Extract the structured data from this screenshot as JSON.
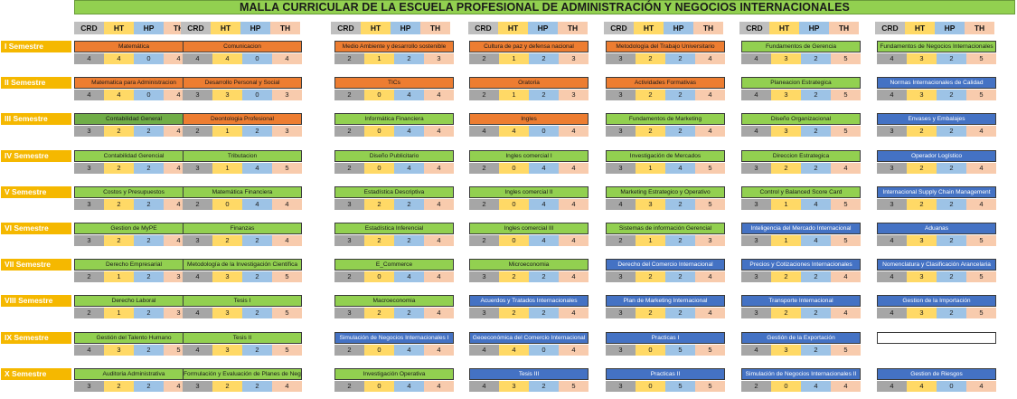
{
  "title": "MALLA CURRICULAR DE LA ESCUELA PROFESIONAL DE ADMINISTRACIÓN Y NEGOCIOS INTERNACIONALES",
  "column_headers": [
    "CRD",
    "HT",
    "HP",
    "TH"
  ],
  "colors": {
    "orange": "#ed7d31",
    "green": "#92d050",
    "dark_green": "#70ad47",
    "blue": "#4472c4",
    "semester": "#f5b800"
  },
  "semesters": [
    {
      "label": "I Semestre",
      "courses": [
        {
          "name": "Matemática",
          "color": "orange",
          "crd": "4",
          "ht": "4",
          "hp": "0",
          "th": "4"
        },
        {
          "name": "Comunicacion",
          "color": "orange",
          "crd": "4",
          "ht": "4",
          "hp": "0",
          "th": "4"
        },
        {
          "name": "Medio Ambiente y desarrollo sostenible",
          "color": "orange",
          "crd": "2",
          "ht": "1",
          "hp": "2",
          "th": "3"
        },
        {
          "name": "Cultura de paz y defensa nacional",
          "color": "orange",
          "crd": "2",
          "ht": "1",
          "hp": "2",
          "th": "3"
        },
        {
          "name": "Metodología del Trabajo Universitario",
          "color": "orange",
          "crd": "3",
          "ht": "2",
          "hp": "2",
          "th": "4"
        },
        {
          "name": "Fundamentos de Gerencia",
          "color": "green",
          "crd": "4",
          "ht": "3",
          "hp": "2",
          "th": "5"
        },
        {
          "name": "Fundamentos de Negocios Internacionales",
          "color": "green",
          "crd": "4",
          "ht": "3",
          "hp": "2",
          "th": "5"
        }
      ]
    },
    {
      "label": "II Semestre",
      "courses": [
        {
          "name": "Matematica para Administracion",
          "color": "orange",
          "crd": "4",
          "ht": "4",
          "hp": "0",
          "th": "4"
        },
        {
          "name": "Desarrollo Personal y Social",
          "color": "orange",
          "crd": "3",
          "ht": "3",
          "hp": "0",
          "th": "3"
        },
        {
          "name": "TICs",
          "color": "orange",
          "crd": "2",
          "ht": "0",
          "hp": "4",
          "th": "4"
        },
        {
          "name": "Oratoria",
          "color": "orange",
          "crd": "2",
          "ht": "1",
          "hp": "2",
          "th": "3"
        },
        {
          "name": "Actividades Formativas",
          "color": "orange",
          "crd": "3",
          "ht": "2",
          "hp": "2",
          "th": "4"
        },
        {
          "name": "Planeacion  Estrategica",
          "color": "green",
          "crd": "4",
          "ht": "3",
          "hp": "2",
          "th": "5"
        },
        {
          "name": "Normas Internacionales de Calidad",
          "color": "blue",
          "crd": "4",
          "ht": "3",
          "hp": "2",
          "th": "5"
        }
      ]
    },
    {
      "label": "III Semestre",
      "courses": [
        {
          "name": "Contabilidad General",
          "color": "dgreen",
          "crd": "3",
          "ht": "2",
          "hp": "2",
          "th": "4"
        },
        {
          "name": "Deontologia Profesional",
          "color": "orange",
          "crd": "2",
          "ht": "1",
          "hp": "2",
          "th": "3"
        },
        {
          "name": "Informática  Financiera",
          "color": "green",
          "crd": "2",
          "ht": "0",
          "hp": "4",
          "th": "4"
        },
        {
          "name": "Ingles",
          "color": "orange",
          "crd": "4",
          "ht": "4",
          "hp": "0",
          "th": "4"
        },
        {
          "name": "Fundamentos de Marketing",
          "color": "green",
          "crd": "3",
          "ht": "2",
          "hp": "2",
          "th": "4"
        },
        {
          "name": "Diseño Organizacional",
          "color": "green",
          "crd": "4",
          "ht": "3",
          "hp": "2",
          "th": "5"
        },
        {
          "name": "Envases y Embalajes",
          "color": "blue",
          "crd": "3",
          "ht": "2",
          "hp": "2",
          "th": "4"
        }
      ]
    },
    {
      "label": "IV Semestre",
      "courses": [
        {
          "name": "Contabilidad Gerencial",
          "color": "green",
          "crd": "3",
          "ht": "2",
          "hp": "2",
          "th": "4"
        },
        {
          "name": "Tributacion",
          "color": "green",
          "crd": "3",
          "ht": "1",
          "hp": "4",
          "th": "5"
        },
        {
          "name": "Diseño Publicitario",
          "color": "green",
          "crd": "2",
          "ht": "0",
          "hp": "4",
          "th": "4"
        },
        {
          "name": "Ingles comercial I",
          "color": "green",
          "crd": "2",
          "ht": "0",
          "hp": "4",
          "th": "4"
        },
        {
          "name": "Investigación de Mercados",
          "color": "green",
          "crd": "3",
          "ht": "1",
          "hp": "4",
          "th": "5"
        },
        {
          "name": "Direccion Estrategica",
          "color": "green",
          "crd": "3",
          "ht": "2",
          "hp": "2",
          "th": "4"
        },
        {
          "name": "Operador Logístico",
          "color": "blue",
          "crd": "3",
          "ht": "2",
          "hp": "2",
          "th": "4"
        }
      ]
    },
    {
      "label": "V Semestre",
      "courses": [
        {
          "name": "Costos y Presupuestos",
          "color": "green",
          "crd": "3",
          "ht": "2",
          "hp": "2",
          "th": "4"
        },
        {
          "name": "Matemática Financiera",
          "color": "green",
          "crd": "2",
          "ht": "0",
          "hp": "4",
          "th": "4"
        },
        {
          "name": "Estadística Descriptiva",
          "color": "green",
          "crd": "3",
          "ht": "2",
          "hp": "2",
          "th": "4"
        },
        {
          "name": "Ingles comercial II",
          "color": "green",
          "crd": "2",
          "ht": "0",
          "hp": "4",
          "th": "4"
        },
        {
          "name": "Marketing Estrategico y Operativo",
          "color": "green",
          "crd": "4",
          "ht": "3",
          "hp": "2",
          "th": "5"
        },
        {
          "name": "Control y Balanced Score Card",
          "color": "green",
          "crd": "3",
          "ht": "1",
          "hp": "4",
          "th": "5"
        },
        {
          "name": "Internacional Supply Chain Management",
          "color": "blue",
          "crd": "3",
          "ht": "2",
          "hp": "2",
          "th": "4"
        }
      ]
    },
    {
      "label": "VI Semestre",
      "courses": [
        {
          "name": "Gestion de MyPE",
          "color": "green",
          "crd": "3",
          "ht": "2",
          "hp": "2",
          "th": "4"
        },
        {
          "name": "Finanzas",
          "color": "green",
          "crd": "3",
          "ht": "2",
          "hp": "2",
          "th": "4"
        },
        {
          "name": "Estadística Inferencial",
          "color": "green",
          "crd": "3",
          "ht": "2",
          "hp": "2",
          "th": "4"
        },
        {
          "name": "Ingles comercial III",
          "color": "green",
          "crd": "2",
          "ht": "0",
          "hp": "4",
          "th": "4"
        },
        {
          "name": "Sistemas de información Gerencial",
          "color": "green",
          "crd": "2",
          "ht": "1",
          "hp": "2",
          "th": "3"
        },
        {
          "name": "Inteligencia del Mercado Internacional",
          "color": "blue",
          "crd": "3",
          "ht": "1",
          "hp": "4",
          "th": "5"
        },
        {
          "name": "Aduanas",
          "color": "blue",
          "crd": "4",
          "ht": "3",
          "hp": "2",
          "th": "5"
        }
      ]
    },
    {
      "label": "VII Semestre",
      "courses": [
        {
          "name": "Derecho Empresarial",
          "color": "green",
          "crd": "2",
          "ht": "1",
          "hp": "2",
          "th": "3"
        },
        {
          "name": "Metodología de la Investigación Científica",
          "color": "green",
          "crd": "4",
          "ht": "3",
          "hp": "2",
          "th": "5"
        },
        {
          "name": "E_Commerce",
          "color": "green",
          "crd": "2",
          "ht": "0",
          "hp": "4",
          "th": "4"
        },
        {
          "name": "Microeconomia",
          "color": "green",
          "crd": "3",
          "ht": "2",
          "hp": "2",
          "th": "4"
        },
        {
          "name": "Derecho del Comercio Internacional",
          "color": "blue",
          "crd": "3",
          "ht": "2",
          "hp": "2",
          "th": "4"
        },
        {
          "name": "Precios y Cotizaciones Internacionales",
          "color": "blue",
          "crd": "3",
          "ht": "2",
          "hp": "2",
          "th": "4"
        },
        {
          "name": "Nomenclatura y Clasificación Arancelaria",
          "color": "blue",
          "crd": "4",
          "ht": "3",
          "hp": "2",
          "th": "5"
        }
      ]
    },
    {
      "label": "VIII Semestre",
      "courses": [
        {
          "name": "Derecho Laboral",
          "color": "green",
          "crd": "2",
          "ht": "1",
          "hp": "2",
          "th": "3"
        },
        {
          "name": "Tesis I",
          "color": "green",
          "crd": "4",
          "ht": "3",
          "hp": "2",
          "th": "5"
        },
        {
          "name": "Macroeconomia",
          "color": "green",
          "crd": "3",
          "ht": "2",
          "hp": "2",
          "th": "4"
        },
        {
          "name": "Acuerdos y Tratados Internacionales",
          "color": "blue",
          "crd": "3",
          "ht": "2",
          "hp": "2",
          "th": "4"
        },
        {
          "name": "Plan de Marketing Internacional",
          "color": "blue",
          "crd": "3",
          "ht": "2",
          "hp": "2",
          "th": "4"
        },
        {
          "name": "Transporte Internacional",
          "color": "blue",
          "crd": "3",
          "ht": "2",
          "hp": "2",
          "th": "4"
        },
        {
          "name": "Gestion de la Importación",
          "color": "blue",
          "crd": "4",
          "ht": "3",
          "hp": "2",
          "th": "5"
        }
      ]
    },
    {
      "label": "IX Semestre",
      "courses": [
        {
          "name": "Gestión del Talento Humano",
          "color": "green",
          "crd": "4",
          "ht": "3",
          "hp": "2",
          "th": "5"
        },
        {
          "name": "Tesis II",
          "color": "green",
          "crd": "4",
          "ht": "3",
          "hp": "2",
          "th": "5"
        },
        {
          "name": "Simulación de Negocios Internacionales I",
          "color": "blue",
          "crd": "2",
          "ht": "0",
          "hp": "4",
          "th": "4"
        },
        {
          "name": "Geoeconómica del Comercio Internacional",
          "color": "blue",
          "crd": "4",
          "ht": "4",
          "hp": "0",
          "th": "4"
        },
        {
          "name": "Practicas I",
          "color": "blue",
          "crd": "3",
          "ht": "0",
          "hp": "5",
          "th": "5"
        },
        {
          "name": "Gestión de la Exportación",
          "color": "blue",
          "crd": "4",
          "ht": "3",
          "hp": "2",
          "th": "5"
        },
        {
          "name": "",
          "color": "white",
          "crd": "",
          "ht": "",
          "hp": "",
          "th": ""
        }
      ]
    },
    {
      "label": "X Semestre",
      "courses": [
        {
          "name": "Auditoria Administrativa",
          "color": "green",
          "crd": "3",
          "ht": "2",
          "hp": "2",
          "th": "4"
        },
        {
          "name": "Formulación y Evaluación de Planes de Negocios",
          "color": "green",
          "crd": "3",
          "ht": "2",
          "hp": "2",
          "th": "4"
        },
        {
          "name": "Investigación Operativa",
          "color": "green",
          "crd": "2",
          "ht": "0",
          "hp": "4",
          "th": "4"
        },
        {
          "name": "Tesis III",
          "color": "blue",
          "crd": "4",
          "ht": "3",
          "hp": "2",
          "th": "5"
        },
        {
          "name": "Practicas II",
          "color": "blue",
          "crd": "3",
          "ht": "0",
          "hp": "5",
          "th": "5"
        },
        {
          "name": "Simulación de Negocios Internacionales II",
          "color": "blue",
          "crd": "2",
          "ht": "0",
          "hp": "4",
          "th": "4"
        },
        {
          "name": "Gestion de Riesgos",
          "color": "blue",
          "crd": "4",
          "ht": "4",
          "hp": "0",
          "th": "4"
        }
      ]
    }
  ]
}
